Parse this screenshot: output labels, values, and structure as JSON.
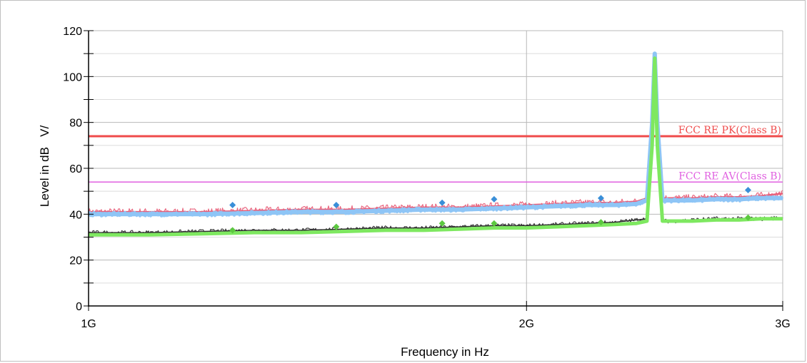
{
  "chart_data": {
    "type": "line",
    "xlabel": "Frequency in Hz",
    "ylabel": "Level in dB   V/",
    "x_scale": "log",
    "xlim": [
      1000000000,
      3000000000
    ],
    "ylim": [
      0,
      120
    ],
    "x_ticks": [
      {
        "value": 1000000000,
        "label": "1G"
      },
      {
        "value": 2000000000,
        "label": "2G"
      },
      {
        "value": 3000000000,
        "label": "3G"
      }
    ],
    "y_ticks": [
      {
        "value": 0,
        "label": "0"
      },
      {
        "value": 20,
        "label": "20"
      },
      {
        "value": 40,
        "label": "40"
      },
      {
        "value": 60,
        "label": "60"
      },
      {
        "value": 80,
        "label": "80"
      },
      {
        "value": 100,
        "label": "100"
      },
      {
        "value": 120,
        "label": "120"
      }
    ],
    "grid": true,
    "limit_lines": [
      {
        "label": "FCC RE PK(Class B)",
        "value": 74,
        "color": "#ef4b4b"
      },
      {
        "label": "FCC RE AV(Class B)",
        "value": 54,
        "color": "#e060e0"
      }
    ],
    "series": [
      {
        "style": "peak trace",
        "color": "#e8607a",
        "x": [
          1000000000,
          1100000000,
          1200000000,
          1300000000,
          1400000000,
          1500000000,
          1600000000,
          1700000000,
          1800000000,
          1900000000,
          2000000000,
          2100000000,
          2200000000,
          2300000000,
          2380000000,
          2420000000,
          2440000000,
          2450000000,
          2460000000,
          2480000000,
          2520000000,
          2600000000,
          2700000000,
          2800000000,
          2900000000,
          3000000000
        ],
        "y": [
          41,
          41,
          41,
          41.5,
          42,
          42,
          42.5,
          43,
          43,
          43.5,
          44,
          44.5,
          45,
          45,
          45.5,
          47,
          80,
          110,
          80,
          47,
          47,
          47,
          47.5,
          47.5,
          48,
          49
        ]
      },
      {
        "style": "peak trace (detector 2)",
        "color": "#8ec5f5",
        "x": [
          1000000000,
          1100000000,
          1200000000,
          1300000000,
          1400000000,
          1500000000,
          1600000000,
          1700000000,
          1800000000,
          1900000000,
          2000000000,
          2100000000,
          2200000000,
          2300000000,
          2380000000,
          2420000000,
          2440000000,
          2450000000,
          2460000000,
          2480000000,
          2520000000,
          2600000000,
          2700000000,
          2800000000,
          2900000000,
          3000000000
        ],
        "y": [
          40,
          40,
          40,
          40.5,
          41,
          41,
          41.5,
          42,
          42,
          42.5,
          43,
          43.5,
          44,
          44,
          44.5,
          46,
          80,
          110,
          80,
          46,
          46,
          46,
          46.5,
          46.5,
          47,
          47
        ]
      },
      {
        "style": "average trace",
        "color": "#303030",
        "x": [
          1000000000,
          1100000000,
          1200000000,
          1300000000,
          1400000000,
          1500000000,
          1600000000,
          1700000000,
          1800000000,
          1900000000,
          2000000000,
          2100000000,
          2200000000,
          2300000000,
          2380000000,
          2420000000,
          2440000000,
          2450000000,
          2460000000,
          2480000000,
          2520000000,
          2600000000,
          2700000000,
          2800000000,
          2900000000,
          3000000000
        ],
        "y": [
          32,
          32,
          32.5,
          33,
          33,
          33.5,
          34,
          34,
          34.5,
          35,
          35,
          35.5,
          36,
          36.5,
          37.5,
          38,
          70,
          105,
          70,
          37,
          37,
          37.5,
          38,
          38,
          38,
          38.5
        ]
      },
      {
        "style": "average trace (detector 2)",
        "color": "#7ee860",
        "x": [
          1000000000,
          1100000000,
          1200000000,
          1300000000,
          1400000000,
          1500000000,
          1600000000,
          1700000000,
          1800000000,
          1900000000,
          2000000000,
          2100000000,
          2200000000,
          2300000000,
          2380000000,
          2420000000,
          2440000000,
          2450000000,
          2460000000,
          2480000000,
          2520000000,
          2600000000,
          2700000000,
          2800000000,
          2900000000,
          3000000000
        ],
        "y": [
          31,
          31,
          31.5,
          32,
          32,
          32.5,
          33,
          33,
          33.5,
          34,
          34,
          34.5,
          35,
          35.5,
          36,
          37,
          70,
          108,
          70,
          37,
          37,
          37,
          37.5,
          37.5,
          38,
          38
        ]
      }
    ],
    "markers": [
      {
        "style": "peak final",
        "color": "#3a8fd8",
        "points": [
          [
            1256000000,
            44
          ],
          [
            1480000000,
            44
          ],
          [
            1750000000,
            45
          ],
          [
            1900000000,
            46.5
          ],
          [
            2250000000,
            47
          ],
          [
            2840000000,
            50.5
          ]
        ]
      },
      {
        "style": "average final",
        "color": "#5cc840",
        "points": [
          [
            1256000000,
            33
          ],
          [
            1480000000,
            34.5
          ],
          [
            1750000000,
            36
          ],
          [
            1900000000,
            36
          ],
          [
            2250000000,
            36.5
          ],
          [
            2840000000,
            38.5
          ]
        ]
      }
    ]
  }
}
